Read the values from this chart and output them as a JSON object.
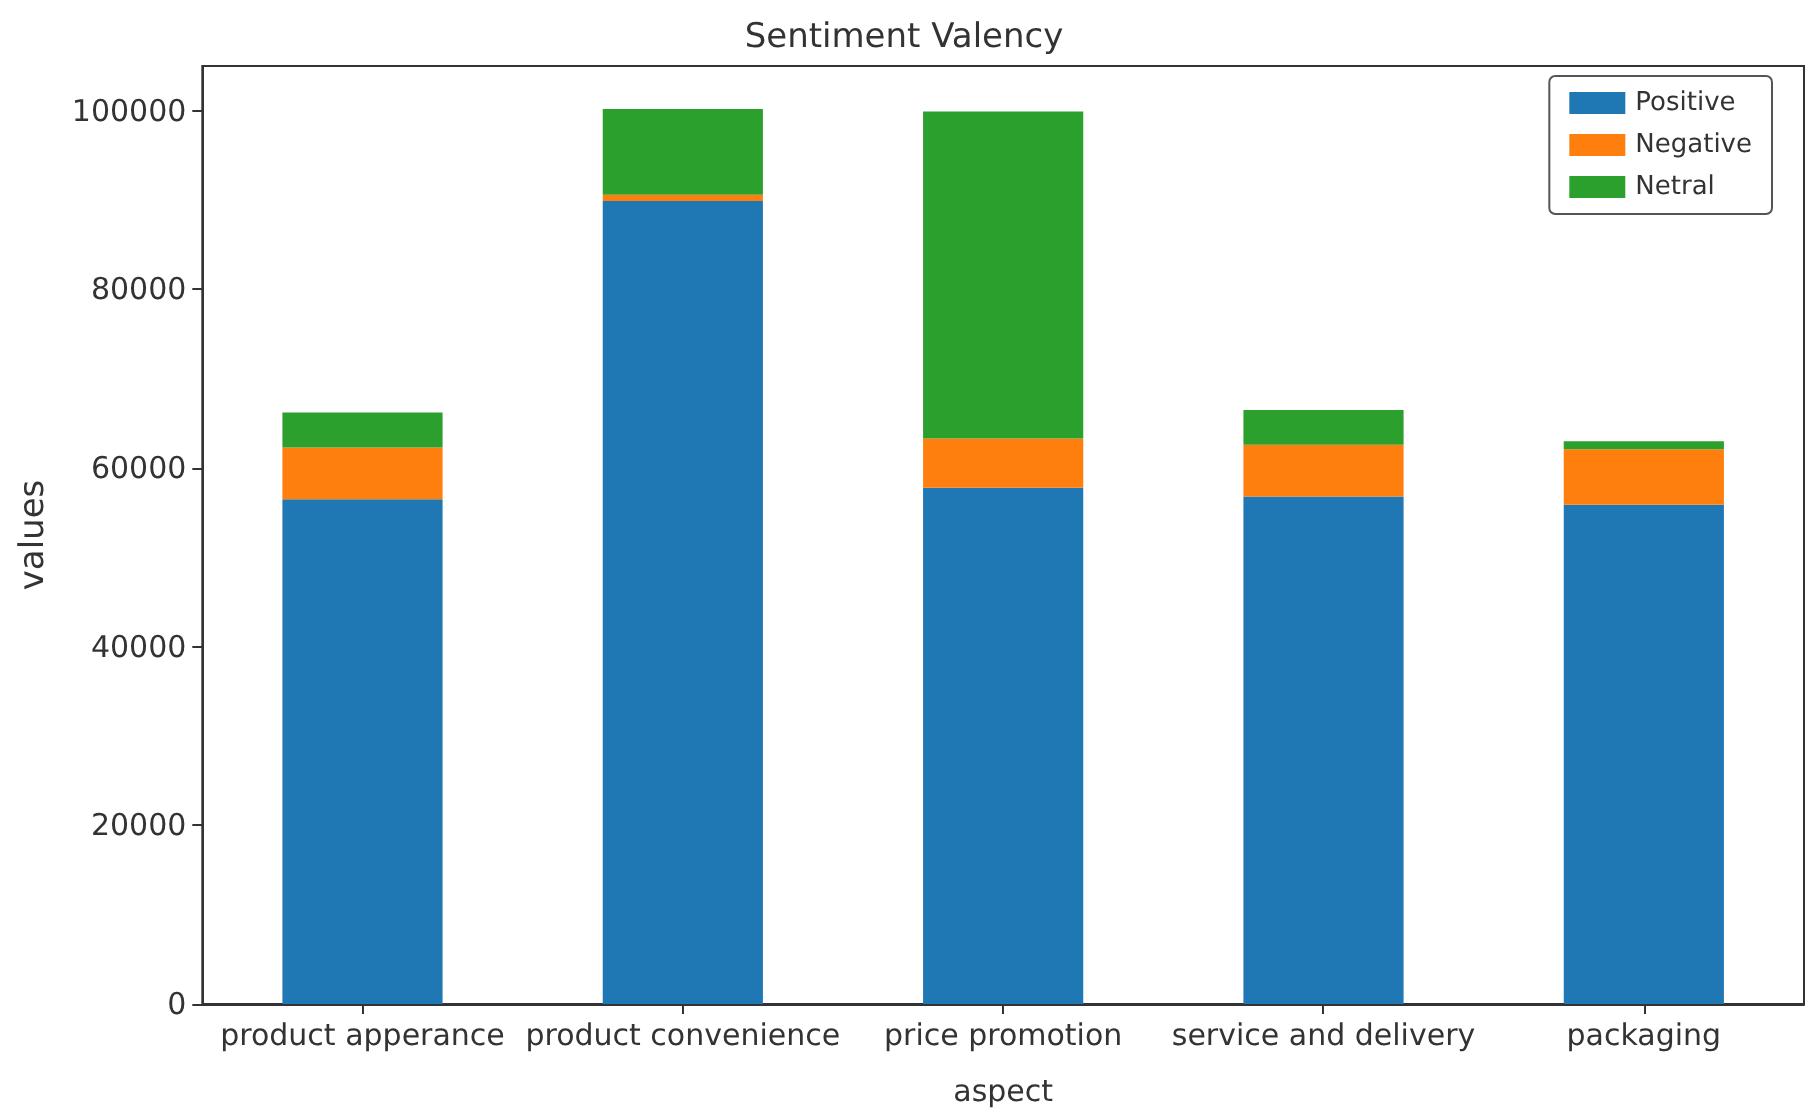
{
  "chart_data": {
    "type": "bar",
    "title": "Sentiment Valency",
    "xlabel": "aspect",
    "ylabel": "values",
    "categories": [
      "product apperance",
      "product convenience",
      "price promotion",
      "service and delivery",
      "packaging"
    ],
    "stacked": true,
    "series": [
      {
        "name": "Positive",
        "color": "#1f77b4",
        "values": [
          56500,
          89900,
          57800,
          56800,
          55900
        ]
      },
      {
        "name": "Negative",
        "color": "#ff7f0e",
        "values": [
          5800,
          700,
          5500,
          5800,
          6200
        ]
      },
      {
        "name": "Netral",
        "color": "#2ca02c",
        "values": [
          3900,
          9600,
          36600,
          3900,
          900
        ]
      }
    ],
    "ylim": [
      0,
      105000
    ],
    "yticks": [
      0,
      20000,
      40000,
      60000,
      80000,
      100000
    ],
    "grid": false,
    "legend": "top right"
  }
}
